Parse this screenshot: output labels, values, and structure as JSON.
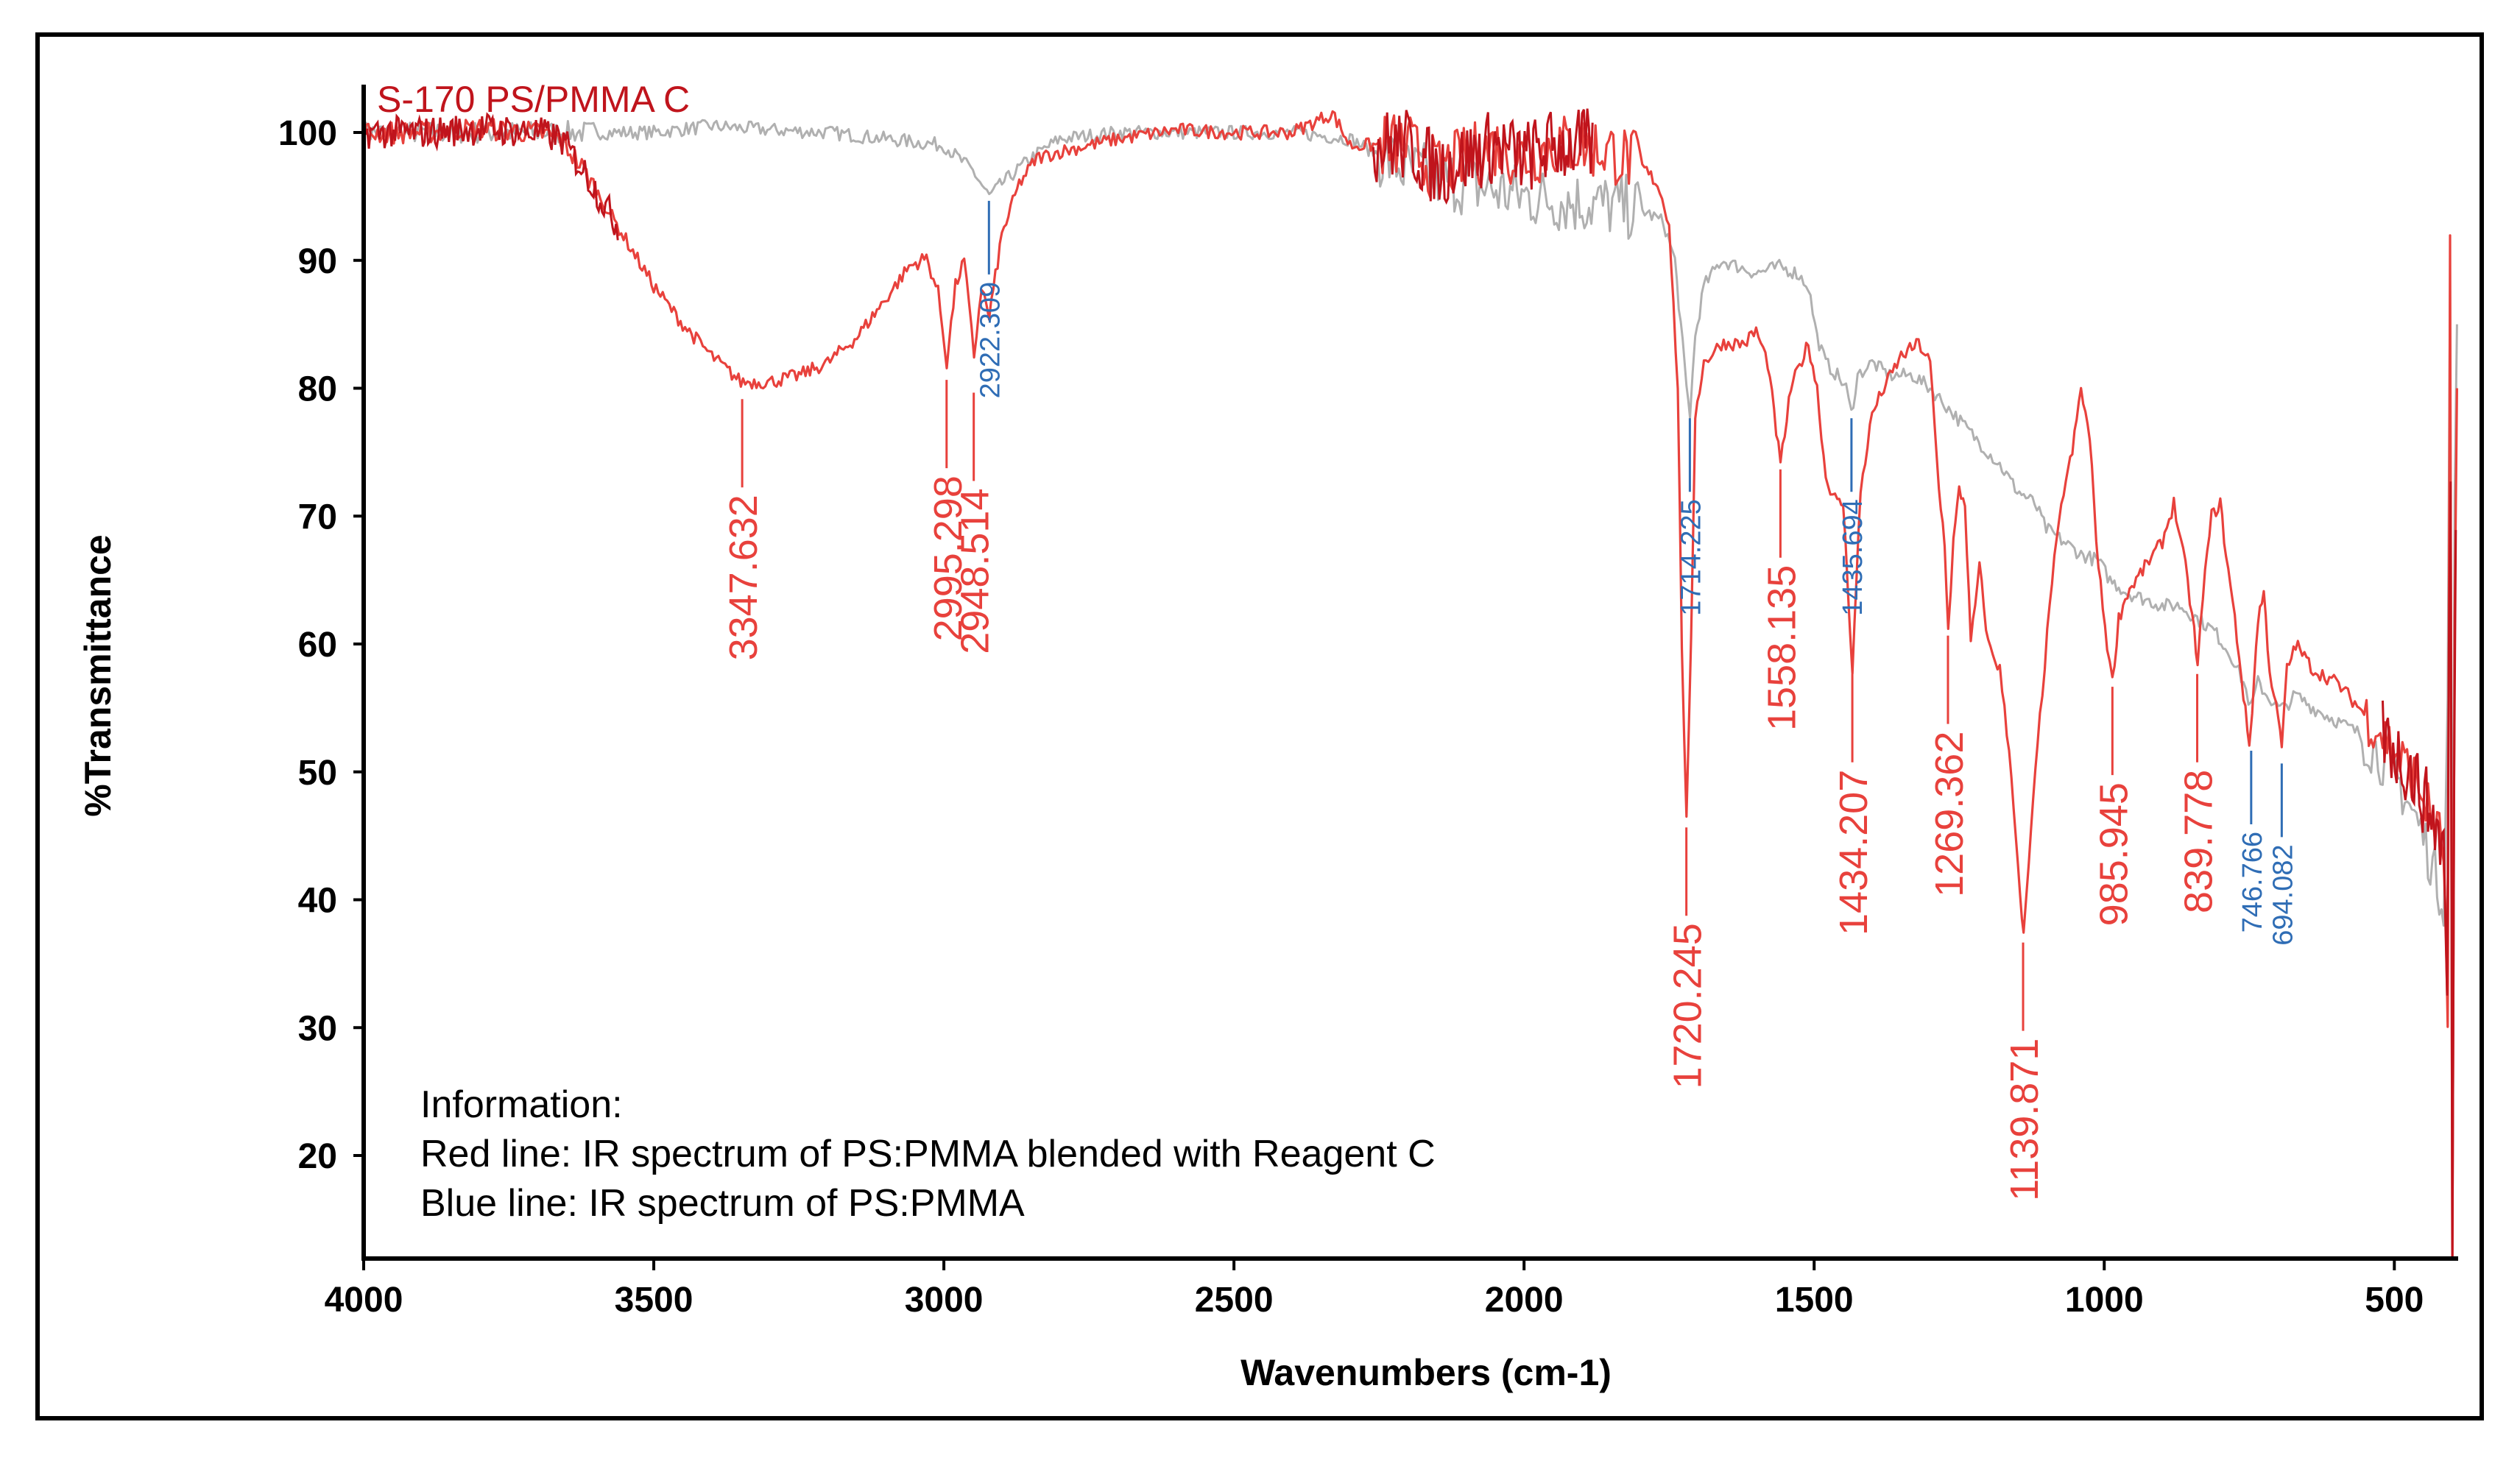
{
  "chart_data": {
    "type": "line",
    "title": "S-170 PS/PMMA C",
    "xlabel": "Wavenumbers (cm-1)",
    "ylabel": "%Transmittance",
    "xlim": [
      4000,
      390
    ],
    "ylim": [
      12,
      105
    ],
    "x_ticks": [
      4000,
      3500,
      3000,
      2500,
      2000,
      1500,
      1000,
      500
    ],
    "y_ticks": [
      20,
      30,
      40,
      50,
      60,
      70,
      80,
      90,
      100
    ],
    "grid": false,
    "colors": {
      "red": "#e8413c",
      "dark_red": "#c0141c",
      "gray": "#b0b0b0",
      "blue": "#2f6db5"
    },
    "series": [
      {
        "name": "Red line: IR spectrum of PS:PMMA blended with Reagent C",
        "color": "#e8413c",
        "points": [
          [
            4000,
            100
          ],
          [
            3900,
            100
          ],
          [
            3800,
            100.3
          ],
          [
            3700,
            100
          ],
          [
            3660,
            99.5
          ],
          [
            3620,
            97
          ],
          [
            3580,
            94
          ],
          [
            3540,
            91
          ],
          [
            3500,
            88
          ],
          [
            3450,
            85
          ],
          [
            3400,
            82.5
          ],
          [
            3350,
            80.5
          ],
          [
            3300,
            80.5
          ],
          [
            3250,
            81
          ],
          [
            3200,
            82
          ],
          [
            3150,
            84
          ],
          [
            3100,
            87
          ],
          [
            3060,
            89.5
          ],
          [
            3030,
            90.2
          ],
          [
            3010,
            87.5
          ],
          [
            2995,
            82
          ],
          [
            2980,
            88
          ],
          [
            2965,
            90
          ],
          [
            2948,
            82.5
          ],
          [
            2935,
            88
          ],
          [
            2922,
            85.5
          ],
          [
            2900,
            92
          ],
          [
            2870,
            96
          ],
          [
            2840,
            98
          ],
          [
            2800,
            98.5
          ],
          [
            2700,
            99.5
          ],
          [
            2600,
            100.2
          ],
          [
            2500,
            100
          ],
          [
            2400,
            100
          ],
          [
            2330,
            101.5
          ],
          [
            2300,
            99
          ],
          [
            2200,
            99
          ],
          [
            2150,
            97
          ],
          [
            2100,
            98
          ],
          [
            2050,
            99
          ],
          [
            2000,
            98
          ],
          [
            1950,
            99
          ],
          [
            1900,
            99
          ],
          [
            1850,
            98.5
          ],
          [
            1800,
            97.5
          ],
          [
            1770,
            96
          ],
          [
            1750,
            93
          ],
          [
            1735,
            80
          ],
          [
            1728,
            60
          ],
          [
            1720,
            46
          ],
          [
            1712,
            60
          ],
          [
            1705,
            78
          ],
          [
            1690,
            82
          ],
          [
            1660,
            83.5
          ],
          [
            1620,
            83.5
          ],
          [
            1600,
            84.5
          ],
          [
            1580,
            82
          ],
          [
            1558,
            74
          ],
          [
            1540,
            80
          ],
          [
            1510,
            83.5
          ],
          [
            1495,
            80
          ],
          [
            1480,
            73
          ],
          [
            1460,
            71
          ],
          [
            1450,
            71
          ],
          [
            1434,
            58
          ],
          [
            1420,
            72
          ],
          [
            1400,
            78
          ],
          [
            1380,
            80
          ],
          [
            1350,
            82.5
          ],
          [
            1320,
            83.5
          ],
          [
            1300,
            82
          ],
          [
            1285,
            72
          ],
          [
            1275,
            68
          ],
          [
            1269,
            61
          ],
          [
            1260,
            68
          ],
          [
            1250,
            72
          ],
          [
            1240,
            71
          ],
          [
            1230,
            60
          ],
          [
            1215,
            66
          ],
          [
            1200,
            60
          ],
          [
            1180,
            58
          ],
          [
            1160,
            50
          ],
          [
            1145,
            40
          ],
          [
            1139,
            37
          ],
          [
            1130,
            43
          ],
          [
            1115,
            52
          ],
          [
            1090,
            65
          ],
          [
            1070,
            72
          ],
          [
            1055,
            75
          ],
          [
            1040,
            80
          ],
          [
            1025,
            76
          ],
          [
            1010,
            66
          ],
          [
            995,
            60
          ],
          [
            986,
            57
          ],
          [
            975,
            62
          ],
          [
            960,
            64
          ],
          [
            930,
            66
          ],
          [
            900,
            68
          ],
          [
            880,
            71
          ],
          [
            860,
            66
          ],
          [
            845,
            61
          ],
          [
            839,
            58
          ],
          [
            830,
            64
          ],
          [
            815,
            70
          ],
          [
            800,
            71
          ],
          [
            790,
            67
          ],
          [
            775,
            62
          ],
          [
            760,
            56
          ],
          [
            750,
            52
          ],
          [
            745,
            55
          ],
          [
            735,
            62
          ],
          [
            725,
            64
          ],
          [
            715,
            58
          ],
          [
            700,
            54
          ],
          [
            694,
            52
          ],
          [
            685,
            58
          ],
          [
            670,
            60
          ],
          [
            640,
            58
          ],
          [
            600,
            57
          ],
          [
            560,
            55
          ],
          [
            520,
            53
          ],
          [
            490,
            51
          ],
          [
            470,
            50
          ],
          [
            450,
            48
          ],
          [
            430,
            46
          ],
          [
            415,
            44
          ],
          [
            408,
            30
          ],
          [
            404,
            90
          ],
          [
            400,
            12
          ],
          [
            396,
            60
          ],
          [
            392,
            80
          ]
        ]
      },
      {
        "name": "Blue line: IR spectrum of PS:PMMA",
        "color": "#b0b0b0",
        "points": [
          [
            4000,
            100
          ],
          [
            3900,
            100
          ],
          [
            3800,
            100
          ],
          [
            3700,
            100
          ],
          [
            3600,
            100
          ],
          [
            3500,
            100
          ],
          [
            3400,
            100.5
          ],
          [
            3300,
            100.2
          ],
          [
            3200,
            100
          ],
          [
            3100,
            99.5
          ],
          [
            3000,
            99
          ],
          [
            2950,
            97
          ],
          [
            2922,
            95
          ],
          [
            2900,
            96
          ],
          [
            2850,
            98
          ],
          [
            2800,
            99.5
          ],
          [
            2700,
            100
          ],
          [
            2600,
            100
          ],
          [
            2500,
            100
          ],
          [
            2400,
            100
          ],
          [
            2300,
            99.5
          ],
          [
            2200,
            97
          ],
          [
            2100,
            96
          ],
          [
            2000,
            95
          ],
          [
            1900,
            94.5
          ],
          [
            1800,
            94
          ],
          [
            1760,
            93
          ],
          [
            1740,
            90
          ],
          [
            1730,
            85
          ],
          [
            1720,
            80
          ],
          [
            1714,
            78
          ],
          [
            1705,
            84
          ],
          [
            1690,
            88
          ],
          [
            1660,
            90
          ],
          [
            1600,
            89
          ],
          [
            1560,
            89.5
          ],
          [
            1530,
            89
          ],
          [
            1510,
            88
          ],
          [
            1495,
            84
          ],
          [
            1480,
            82
          ],
          [
            1460,
            81
          ],
          [
            1445,
            80
          ],
          [
            1436,
            78
          ],
          [
            1425,
            81
          ],
          [
            1400,
            82
          ],
          [
            1370,
            81
          ],
          [
            1330,
            81
          ],
          [
            1300,
            80
          ],
          [
            1260,
            78
          ],
          [
            1220,
            76
          ],
          [
            1180,
            74
          ],
          [
            1150,
            72
          ],
          [
            1120,
            71
          ],
          [
            1100,
            69
          ],
          [
            1070,
            68
          ],
          [
            1040,
            67
          ],
          [
            1010,
            66.5
          ],
          [
            990,
            65
          ],
          [
            960,
            64
          ],
          [
            930,
            63.5
          ],
          [
            900,
            63
          ],
          [
            870,
            63
          ],
          [
            840,
            62
          ],
          [
            810,
            61
          ],
          [
            780,
            59
          ],
          [
            760,
            57
          ],
          [
            747,
            55
          ],
          [
            735,
            57
          ],
          [
            720,
            56
          ],
          [
            700,
            55
          ],
          [
            690,
            55
          ],
          [
            670,
            56
          ],
          [
            640,
            55
          ],
          [
            600,
            54
          ],
          [
            560,
            53
          ],
          [
            520,
            51
          ],
          [
            490,
            49
          ],
          [
            470,
            47
          ],
          [
            450,
            45
          ],
          [
            430,
            42
          ],
          [
            415,
            40
          ],
          [
            408,
            55
          ],
          [
            404,
            88
          ],
          [
            400,
            30
          ],
          [
            396,
            70
          ],
          [
            392,
            85
          ]
        ]
      }
    ],
    "annotations": [
      {
        "x": 3347.632,
        "label": "3347.632",
        "color": "red",
        "marker_y": 79.5
      },
      {
        "x": 2995.298,
        "label": "2995.298",
        "color": "red",
        "marker_y": 81
      },
      {
        "x": 2948.514,
        "label": "2948.514",
        "color": "red",
        "marker_y": 80
      },
      {
        "x": 2922.309,
        "label": "2922.309",
        "color": "blue",
        "marker_y": 95
      },
      {
        "x": 1720.245,
        "label": "1720.245",
        "color": "red",
        "marker_y": 46
      },
      {
        "x": 1714.225,
        "label": "1714.225",
        "color": "blue",
        "marker_y": 78
      },
      {
        "x": 1558.135,
        "label": "1558.135",
        "color": "red",
        "marker_y": 74
      },
      {
        "x": 1435.694,
        "label": "1435.694",
        "color": "blue",
        "marker_y": 78
      },
      {
        "x": 1434.207,
        "label": "1434.207",
        "color": "red",
        "marker_y": 58
      },
      {
        "x": 1269.362,
        "label": "1269.362",
        "color": "red",
        "marker_y": 61
      },
      {
        "x": 1139.871,
        "label": "1139.871",
        "color": "red",
        "marker_y": 37
      },
      {
        "x": 985.945,
        "label": "985.945",
        "color": "red",
        "marker_y": 57
      },
      {
        "x": 839.778,
        "label": "839.778",
        "color": "red",
        "marker_y": 58
      },
      {
        "x": 746.766,
        "label": "746.766",
        "color": "blue",
        "marker_y": 52
      },
      {
        "x": 694.082,
        "label": "694.082",
        "color": "blue",
        "marker_y": 51
      }
    ],
    "legend": {
      "heading": "Information:",
      "line1": "Red line: IR spectrum of PS:PMMA  blended with Reagent C",
      "line2": "Blue line: IR spectrum of PS:PMMA",
      "placement": "bottom-left"
    }
  }
}
